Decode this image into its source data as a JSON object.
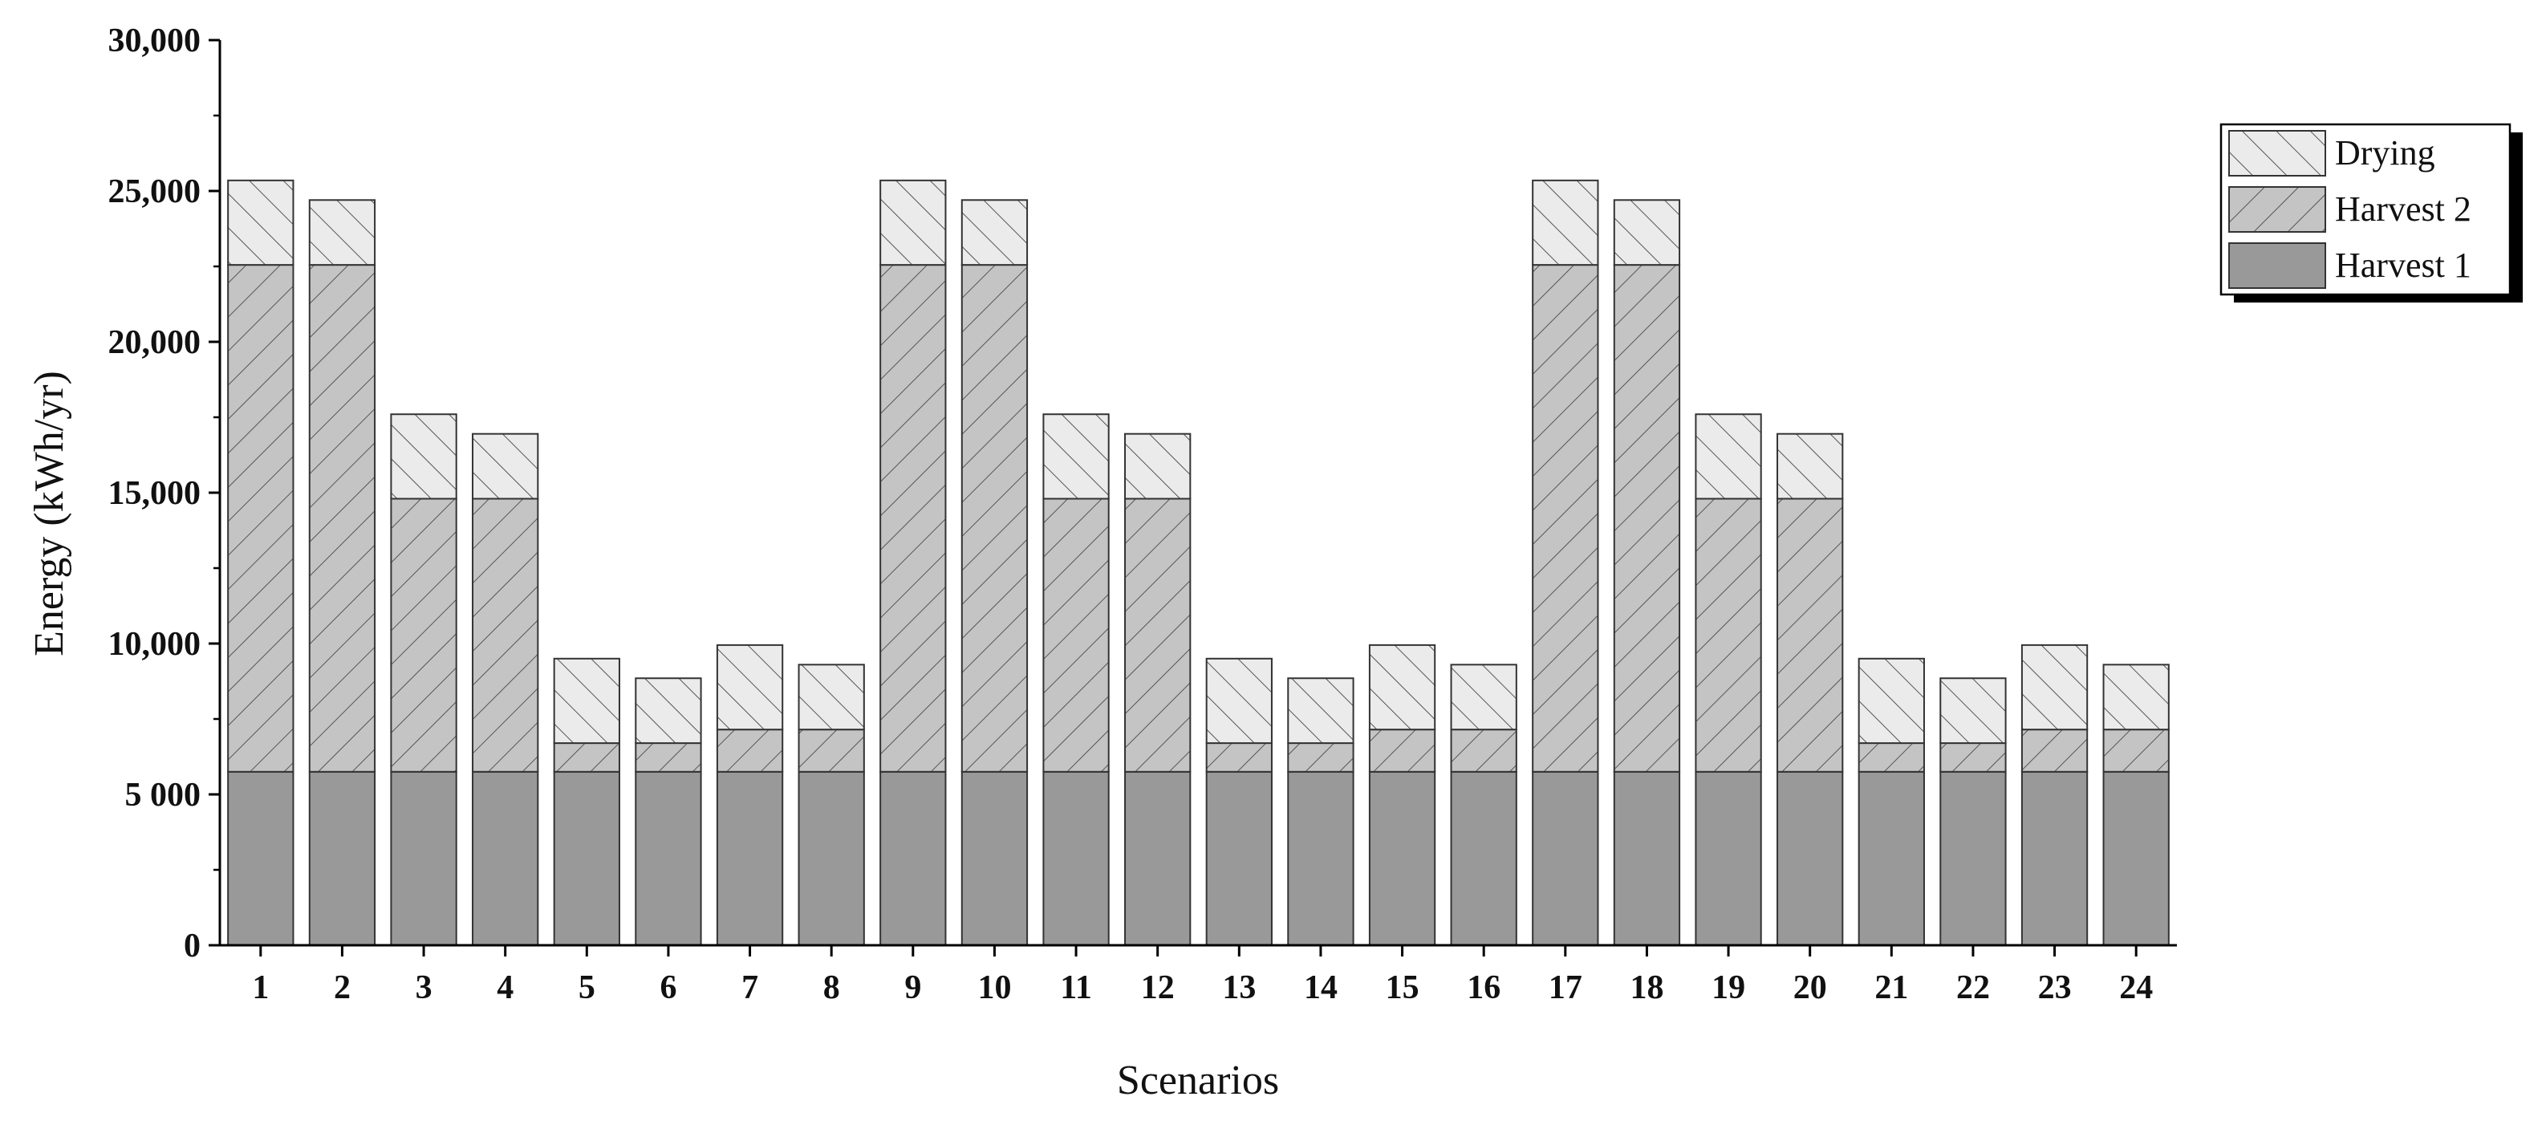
{
  "chart_data": {
    "type": "bar",
    "stacked": true,
    "title": "",
    "xlabel": "Scenarios",
    "ylabel": "Energy (kWh/yr)",
    "ylim": [
      0,
      30000
    ],
    "yticks": [
      0,
      5000,
      10000,
      15000,
      20000,
      25000,
      30000
    ],
    "ytick_labels": [
      "0",
      "5 000",
      "10,000",
      "15,000",
      "20,000",
      "25,000",
      "30,000"
    ],
    "categories": [
      "1",
      "2",
      "3",
      "4",
      "5",
      "6",
      "7",
      "8",
      "9",
      "10",
      "11",
      "12",
      "13",
      "14",
      "15",
      "16",
      "17",
      "18",
      "19",
      "20",
      "21",
      "22",
      "23",
      "24"
    ],
    "grid": false,
    "legend_position": "top-right",
    "legend_order": [
      "Drying",
      "Harvest 2",
      "Harvest 1"
    ],
    "series": [
      {
        "name": "Harvest 1",
        "pattern": "solid",
        "color": "#999999",
        "values": [
          5750,
          5750,
          5750,
          5750,
          5750,
          5750,
          5750,
          5750,
          5750,
          5750,
          5750,
          5750,
          5750,
          5750,
          5750,
          5750,
          5750,
          5750,
          5750,
          5750,
          5750,
          5750,
          5750,
          5750
        ]
      },
      {
        "name": "Harvest 2",
        "pattern": "forward-hatch",
        "color": "#c4c4c4",
        "values": [
          16800,
          16800,
          9050,
          9050,
          950,
          950,
          1400,
          1400,
          16800,
          16800,
          9050,
          9050,
          950,
          950,
          1400,
          1400,
          16800,
          16800,
          9050,
          9050,
          950,
          950,
          1400,
          1400
        ]
      },
      {
        "name": "Drying",
        "pattern": "back-hatch",
        "color": "#ebebeb",
        "values": [
          2800,
          2150,
          2800,
          2150,
          2800,
          2150,
          2800,
          2150,
          2800,
          2150,
          2800,
          2150,
          2800,
          2150,
          2800,
          2150,
          2800,
          2150,
          2800,
          2150,
          2800,
          2150,
          2800,
          2150
        ]
      }
    ]
  }
}
